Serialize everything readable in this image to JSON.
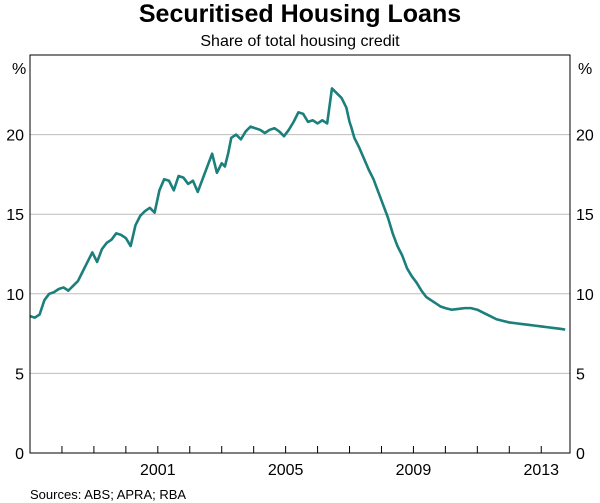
{
  "chart_data": {
    "type": "line",
    "title": "Securitised Housing Loans",
    "subtitle": "Share of total housing credit",
    "y_unit_left": "%",
    "y_unit_right": "%",
    "source": "Sources: ABS; APRA; RBA",
    "xlim": [
      1997.0,
      2013.9
    ],
    "ylim": [
      0,
      25
    ],
    "y_ticks": [
      0,
      5,
      10,
      15,
      20
    ],
    "x_ticks": [
      1997,
      1998,
      1999,
      2000,
      2001,
      2002,
      2003,
      2004,
      2005,
      2006,
      2007,
      2008,
      2009,
      2010,
      2011,
      2012,
      2013
    ],
    "x_tick_labels": [
      {
        "value": 2001,
        "label": "2001"
      },
      {
        "value": 2005,
        "label": "2005"
      },
      {
        "value": 2009,
        "label": "2009"
      },
      {
        "value": 2013,
        "label": "2013"
      }
    ],
    "grid": true,
    "line_color": "#1b7f7c",
    "series": [
      {
        "x": [
          1997.0,
          1997.15,
          1997.3,
          1997.45,
          1997.6,
          1997.75,
          1997.9,
          1998.05,
          1998.2,
          1998.35,
          1998.5,
          1998.65,
          1998.8,
          1998.95,
          1999.1,
          1999.25,
          1999.4,
          1999.55,
          1999.7,
          1999.85,
          2000.0,
          2000.15,
          2000.3,
          2000.45,
          2000.6,
          2000.75,
          2000.9,
          2001.05,
          2001.2,
          2001.35,
          2001.5,
          2001.65,
          2001.8,
          2001.95,
          2002.1,
          2002.25,
          2002.4,
          2002.55,
          2002.7,
          2002.85,
          2003.0,
          2003.1,
          2003.2,
          2003.3,
          2003.45,
          2003.6,
          2003.75,
          2003.9,
          2004.05,
          2004.2,
          2004.35,
          2004.5,
          2004.65,
          2004.8,
          2004.95,
          2005.1,
          2005.25,
          2005.4,
          2005.55,
          2005.7,
          2005.85,
          2006.0,
          2006.15,
          2006.3,
          2006.45,
          2006.6,
          2006.75,
          2006.9,
          2007.0,
          2007.05,
          2007.15,
          2007.3,
          2007.45,
          2007.6,
          2007.75,
          2007.9,
          2008.05,
          2008.2,
          2008.35,
          2008.5,
          2008.65,
          2008.8,
          2008.95,
          2009.1,
          2009.25,
          2009.4,
          2009.55,
          2009.7,
          2009.85,
          2010.0,
          2010.2,
          2010.4,
          2010.6,
          2010.8,
          2011.0,
          2011.2,
          2011.4,
          2011.6,
          2011.8,
          2012.0,
          2012.2,
          2012.4,
          2012.6,
          2012.8,
          2013.0,
          2013.2,
          2013.4,
          2013.6,
          2013.75
        ],
        "values": [
          8.6,
          8.5,
          8.7,
          9.6,
          10.0,
          10.1,
          10.3,
          10.4,
          10.2,
          10.5,
          10.8,
          11.4,
          12.0,
          12.6,
          12.0,
          12.8,
          13.2,
          13.4,
          13.8,
          13.7,
          13.5,
          13.0,
          14.3,
          14.9,
          15.2,
          15.4,
          15.1,
          16.5,
          17.2,
          17.1,
          16.5,
          17.4,
          17.3,
          16.9,
          17.1,
          16.4,
          17.2,
          18.0,
          18.8,
          17.6,
          18.2,
          18.0,
          18.8,
          19.8,
          20.0,
          19.7,
          20.2,
          20.5,
          20.4,
          20.3,
          20.1,
          20.3,
          20.4,
          20.2,
          19.9,
          20.3,
          20.8,
          21.4,
          21.3,
          20.8,
          20.9,
          20.7,
          20.9,
          20.7,
          22.9,
          22.6,
          22.3,
          21.7,
          20.8,
          20.5,
          19.8,
          19.2,
          18.5,
          17.8,
          17.2,
          16.4,
          15.6,
          14.8,
          13.8,
          13.0,
          12.4,
          11.6,
          11.1,
          10.7,
          10.2,
          9.8,
          9.6,
          9.4,
          9.2,
          9.1,
          9.0,
          9.05,
          9.1,
          9.1,
          9.0,
          8.8,
          8.6,
          8.4,
          8.3,
          8.2,
          8.15,
          8.1,
          8.05,
          8.0,
          7.95,
          7.9,
          7.85,
          7.8,
          7.75
        ]
      }
    ]
  }
}
